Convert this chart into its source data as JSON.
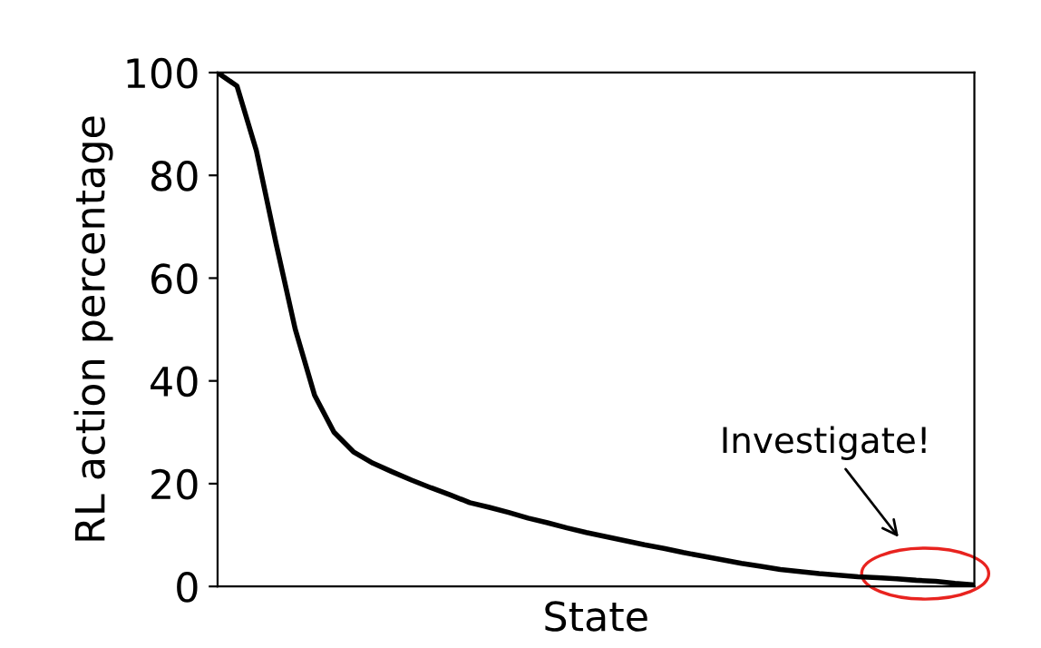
{
  "chart_data": {
    "type": "line",
    "xlabel": "State",
    "ylabel": "RL action percentage",
    "categories": [
      null,
      null,
      null,
      null,
      null,
      null,
      null,
      null,
      null,
      null,
      null,
      null,
      null,
      null,
      null,
      null,
      null,
      null,
      null,
      null,
      null,
      null,
      null,
      null,
      null,
      null,
      null,
      null,
      null,
      null,
      null,
      null,
      null,
      null,
      null,
      null,
      null,
      null,
      null,
      null
    ],
    "series": [
      {
        "color": "#000000",
        "values": [
          100,
          97.4,
          84.8,
          67.0,
          50.1,
          37.2,
          30.0,
          26.2,
          24.0,
          22.3,
          20.7,
          19.2,
          17.8,
          16.3,
          15.4,
          14.4,
          13.3,
          12.4,
          11.4,
          10.5,
          9.7,
          8.9,
          8.1,
          7.4,
          6.6,
          5.9,
          5.2,
          4.5,
          3.9,
          3.3,
          2.9,
          2.5,
          2.2,
          1.9,
          1.7,
          1.5,
          1.2,
          1.0,
          0.6,
          0.3
        ]
      }
    ],
    "ylim": [
      0,
      100
    ],
    "yticks": [
      0,
      20,
      40,
      60,
      80,
      100
    ],
    "annotations": [
      "Investigate!"
    ],
    "grid": false,
    "legend": false
  }
}
